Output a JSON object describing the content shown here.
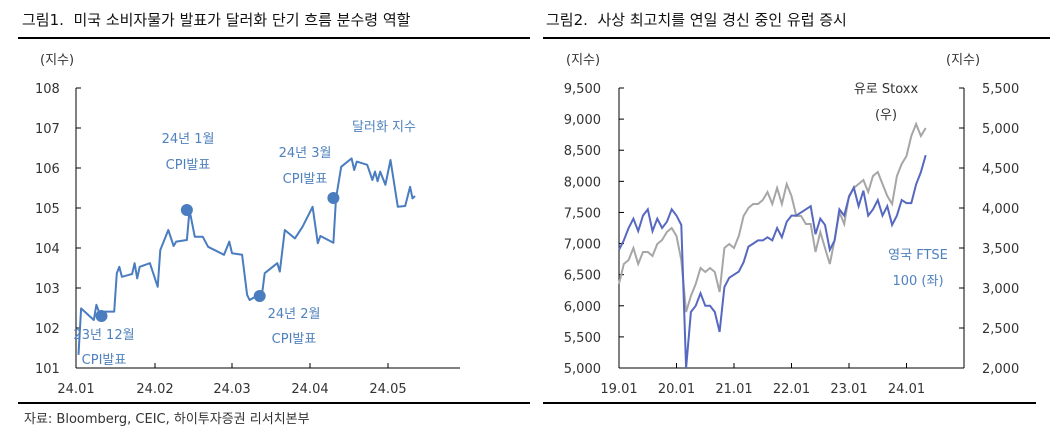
{
  "left_panel": {
    "title": "그림1.  미국 소비자물가 발표가 달러화 단기 흐름 분수령 역할",
    "source": "자료: Bloomberg, CEIC, 하이투자증권 리서치본부"
  },
  "right_panel": {
    "title": "그림2.  사상 최고치를 연일 경신 중인 유럽 증시"
  },
  "colors": {
    "dxy": "#4a7cc0",
    "annotation": "#4f81bd",
    "ftse": "#5668c0",
    "stoxx": "#a6a6a6",
    "axis": "#000000"
  },
  "chart_data": [
    {
      "type": "line",
      "ylabel": "(지수)",
      "ylim": [
        101,
        108
      ],
      "yticks": [
        "101",
        "102",
        "103",
        "104",
        "105",
        "106",
        "107",
        "108"
      ],
      "xticks": [
        "24.01",
        "24.02",
        "24.03",
        "24.04",
        "24.05"
      ],
      "grid": false,
      "series": [
        {
          "name": "달러화 지수",
          "x": [
            "2024-01-02",
            "2024-01-03",
            "2024-01-08",
            "2024-01-09",
            "2024-01-10",
            "2024-01-16",
            "2024-01-17",
            "2024-01-18",
            "2024-01-19",
            "2024-01-23",
            "2024-01-24",
            "2024-01-25",
            "2024-01-26",
            "2024-01-30",
            "2024-02-02",
            "2024-02-03",
            "2024-02-06",
            "2024-02-08",
            "2024-02-09",
            "2024-02-13",
            "2024-02-14",
            "2024-02-16",
            "2024-02-19",
            "2024-02-21",
            "2024-02-27",
            "2024-02-29",
            "2024-03-01",
            "2024-03-05",
            "2024-03-07",
            "2024-03-08",
            "2024-03-13",
            "2024-03-14",
            "2024-03-19",
            "2024-03-20",
            "2024-03-22",
            "2024-03-26",
            "2024-03-29",
            "2024-04-02",
            "2024-04-04",
            "2024-04-05",
            "2024-04-10",
            "2024-04-11",
            "2024-04-13",
            "2024-04-17",
            "2024-04-18",
            "2024-04-19",
            "2024-04-23",
            "2024-04-25",
            "2024-04-26",
            "2024-04-27",
            "2024-04-28",
            "2024-04-30",
            "2024-05-02",
            "2024-05-05",
            "2024-05-08",
            "2024-05-10",
            "2024-05-11",
            "2024-05-12"
          ],
          "y": [
            101.33,
            102.49,
            102.2,
            102.58,
            102.41,
            102.41,
            103.37,
            103.53,
            103.28,
            103.35,
            103.62,
            103.24,
            103.53,
            103.62,
            103.03,
            103.95,
            104.45,
            104.05,
            104.16,
            104.2,
            104.95,
            104.28,
            104.28,
            104.03,
            103.83,
            104.16,
            103.87,
            103.83,
            102.83,
            102.7,
            102.88,
            103.37,
            103.62,
            103.41,
            104.45,
            104.24,
            104.53,
            105.03,
            104.12,
            104.3,
            104.13,
            105.24,
            106.03,
            106.24,
            105.95,
            106.16,
            106.08,
            105.7,
            105.91,
            105.67,
            105.91,
            105.58,
            106.2,
            105.03,
            105.05,
            105.53,
            105.24,
            105.3
          ]
        }
      ],
      "annotations": [
        {
          "label1": "23년 12월",
          "label2": "CPI발표",
          "x": "2024-01-11",
          "y": 102.3
        },
        {
          "label1": "24년 1월",
          "label2": "CPI발표",
          "x": "2024-02-13",
          "y": 104.95
        },
        {
          "label1": "24년 2월",
          "label2": "CPI발표",
          "x": "2024-03-12",
          "y": 102.8
        },
        {
          "label1": "24년 3월",
          "label2": "CPI발표",
          "x": "2024-04-10",
          "y": 105.25
        }
      ]
    },
    {
      "type": "line",
      "ylabel_left": "(지수)",
      "ylabel_right": "(지수)",
      "ylim_left": [
        5000,
        9500
      ],
      "ylim_right": [
        2000,
        5500
      ],
      "yticks_left": [
        "5,000",
        "5,500",
        "6,000",
        "6,500",
        "7,000",
        "7,500",
        "8,000",
        "8,500",
        "9,000",
        "9,500"
      ],
      "yticks_right": [
        "2,000",
        "2,500",
        "3,000",
        "3,500",
        "4,000",
        "4,500",
        "5,000",
        "5,500"
      ],
      "xticks": [
        "19.01",
        "20.01",
        "21.01",
        "22.01",
        "23.01",
        "24.01"
      ],
      "grid": false,
      "series": [
        {
          "name": "영국 FTSE 100 (좌)",
          "label1": "영국 FTSE",
          "label2": "100 (좌)",
          "axis": "left",
          "x_start": "2019-01",
          "values": [
            6900,
            7050,
            7250,
            7400,
            7200,
            7450,
            7550,
            7200,
            7400,
            7250,
            7350,
            7550,
            7450,
            7300,
            5000,
            5900,
            6000,
            6200,
            6000,
            6000,
            5900,
            5580,
            6300,
            6450,
            6500,
            6550,
            6700,
            6950,
            7000,
            7050,
            7050,
            7100,
            7050,
            7250,
            7100,
            7350,
            7450,
            7450,
            7500,
            7550,
            7600,
            7150,
            7400,
            7300,
            6900,
            7050,
            7550,
            7450,
            7750,
            7900,
            7600,
            7850,
            7450,
            7550,
            7700,
            7450,
            7600,
            7300,
            7450,
            7700,
            7650,
            7650,
            7950,
            8150,
            8420
          ]
        },
        {
          "name": "유로 Stoxx (우)",
          "label1": "유로 Stoxx",
          "label2": "(우)",
          "axis": "right",
          "x_start": "2019-01",
          "values": [
            3050,
            3300,
            3350,
            3500,
            3300,
            3450,
            3450,
            3400,
            3550,
            3600,
            3700,
            3750,
            3650,
            3350,
            2700,
            2900,
            3050,
            3250,
            3200,
            3250,
            3200,
            2950,
            3500,
            3550,
            3500,
            3650,
            3900,
            4000,
            4050,
            4050,
            4100,
            4200,
            4050,
            4250,
            4050,
            4300,
            4150,
            3900,
            3900,
            3800,
            3800,
            3450,
            3700,
            3500,
            3300,
            3600,
            3950,
            3800,
            4150,
            4250,
            4300,
            4350,
            4200,
            4400,
            4450,
            4300,
            4150,
            4050,
            4400,
            4550,
            4650,
            4900,
            5050,
            4900,
            5000
          ]
        }
      ]
    }
  ]
}
